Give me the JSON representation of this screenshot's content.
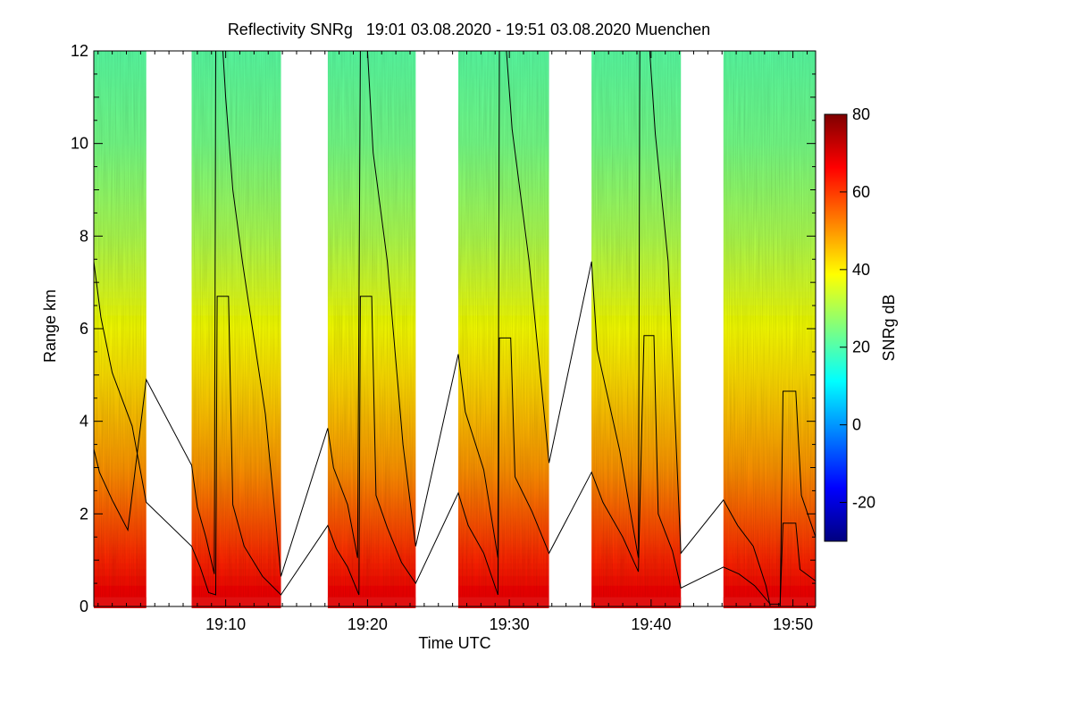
{
  "chart_data": {
    "type": "heatmap",
    "title": "Reflectivity SNRg   19:01 03.08.2020 - 19:51 03.08.2020 Muenchen",
    "xlabel": "Time UTC",
    "ylabel": "Range km",
    "x_range_minutes_after_19": [
      0.7,
      51.6
    ],
    "ylim": [
      0,
      12
    ],
    "x_ticks": [
      {
        "label": "19:10",
        "minutes_after_19": 10
      },
      {
        "label": "19:20",
        "minutes_after_19": 20
      },
      {
        "label": "19:30",
        "minutes_after_19": 30
      },
      {
        "label": "19:40",
        "minutes_after_19": 40
      },
      {
        "label": "19:50",
        "minutes_after_19": 50
      }
    ],
    "y_ticks": [
      "0",
      "2",
      "4",
      "6",
      "8",
      "10",
      "12"
    ],
    "colorbar": {
      "label": "SNRg dB",
      "min": -30,
      "max": 80,
      "ticks": [
        "-20",
        "0",
        "20",
        "40",
        "60",
        "80"
      ],
      "colormap": [
        "#00007f",
        "#0000ff",
        "#007fff",
        "#00ffff",
        "#7fff7f",
        "#ffff00",
        "#ff7f00",
        "#ff0000",
        "#7f0000"
      ]
    },
    "scan_blocks_minutes_after_19": [
      [
        0.7,
        4.4
      ],
      [
        7.6,
        13.9
      ],
      [
        17.2,
        23.4
      ],
      [
        26.4,
        32.8
      ],
      [
        35.8,
        42.1
      ],
      [
        45.1,
        51.6
      ]
    ],
    "snr_profile_db": [
      {
        "range_km": 0.0,
        "snr_db": 68
      },
      {
        "range_km": 1.0,
        "snr_db": 62
      },
      {
        "range_km": 2.0,
        "snr_db": 56
      },
      {
        "range_km": 3.0,
        "snr_db": 50
      },
      {
        "range_km": 4.0,
        "snr_db": 46
      },
      {
        "range_km": 5.0,
        "snr_db": 42
      },
      {
        "range_km": 6.0,
        "snr_db": 38
      },
      {
        "range_km": 7.0,
        "snr_db": 34
      },
      {
        "range_km": 8.0,
        "snr_db": 30
      },
      {
        "range_km": 10.0,
        "snr_db": 24
      },
      {
        "range_km": 12.0,
        "snr_db": 21
      }
    ],
    "overlay_lines": [
      {
        "points": [
          [
            0.7,
            7.45
          ],
          [
            1.2,
            6.25
          ],
          [
            2.0,
            5.05
          ],
          [
            3.4,
            3.9
          ],
          [
            4.4,
            2.25
          ],
          [
            7.6,
            1.3
          ],
          [
            8.2,
            0.85
          ],
          [
            8.8,
            0.3
          ],
          [
            9.3,
            0.25
          ],
          [
            9.4,
            6.7
          ],
          [
            10.2,
            6.7
          ],
          [
            10.5,
            2.2
          ],
          [
            11.3,
            1.3
          ],
          [
            12.6,
            0.65
          ],
          [
            13.9,
            0.25
          ],
          [
            17.2,
            1.75
          ],
          [
            17.8,
            1.25
          ],
          [
            18.6,
            0.85
          ],
          [
            19.4,
            0.25
          ],
          [
            19.5,
            6.7
          ],
          [
            20.3,
            6.7
          ],
          [
            20.6,
            2.4
          ],
          [
            21.4,
            1.7
          ],
          [
            22.4,
            0.95
          ],
          [
            23.4,
            0.5
          ],
          [
            26.4,
            2.45
          ],
          [
            27.1,
            1.75
          ],
          [
            28.2,
            1.15
          ],
          [
            29.2,
            0.25
          ],
          [
            29.3,
            5.8
          ],
          [
            30.1,
            5.8
          ],
          [
            30.4,
            2.8
          ],
          [
            31.6,
            2.05
          ],
          [
            32.8,
            1.15
          ],
          [
            35.8,
            2.9
          ],
          [
            36.6,
            2.25
          ],
          [
            38.0,
            1.5
          ],
          [
            39.1,
            0.75
          ],
          [
            39.5,
            5.85
          ],
          [
            40.2,
            5.85
          ],
          [
            40.5,
            2.0
          ],
          [
            41.5,
            1.2
          ],
          [
            42.1,
            0.4
          ],
          [
            45.1,
            0.85
          ],
          [
            46.2,
            0.7
          ],
          [
            47.3,
            0.45
          ],
          [
            48.4,
            0.05
          ],
          [
            49.1,
            0.05
          ],
          [
            49.3,
            1.8
          ],
          [
            50.2,
            1.8
          ],
          [
            50.5,
            0.8
          ],
          [
            51.6,
            0.55
          ]
        ]
      },
      {
        "points": [
          [
            0.7,
            3.4
          ],
          [
            1.1,
            2.9
          ],
          [
            2.0,
            2.3
          ],
          [
            3.1,
            1.65
          ],
          [
            4.4,
            4.9
          ],
          [
            7.6,
            3.05
          ],
          [
            8.0,
            2.15
          ],
          [
            8.6,
            1.5
          ],
          [
            9.2,
            0.7
          ],
          [
            9.3,
            12.0
          ],
          [
            9.8,
            12.0
          ],
          [
            10.0,
            11.0
          ],
          [
            10.5,
            9.0
          ],
          [
            11.2,
            7.4
          ],
          [
            12.8,
            4.15
          ],
          [
            13.9,
            0.65
          ],
          [
            17.2,
            3.85
          ],
          [
            17.6,
            3.0
          ],
          [
            18.6,
            2.2
          ],
          [
            19.3,
            1.05
          ],
          [
            19.5,
            12.0
          ],
          [
            20.0,
            12.0
          ],
          [
            20.4,
            9.8
          ],
          [
            21.4,
            7.45
          ],
          [
            22.5,
            3.5
          ],
          [
            23.4,
            1.3
          ],
          [
            26.4,
            5.45
          ],
          [
            26.9,
            4.2
          ],
          [
            28.2,
            2.95
          ],
          [
            29.2,
            1.05
          ],
          [
            29.3,
            12.0
          ],
          [
            29.8,
            12.0
          ],
          [
            30.2,
            10.3
          ],
          [
            31.4,
            7.45
          ],
          [
            32.8,
            3.1
          ],
          [
            35.8,
            7.45
          ],
          [
            36.2,
            5.55
          ],
          [
            37.8,
            3.35
          ],
          [
            39.1,
            1.05
          ],
          [
            39.2,
            12.0
          ],
          [
            39.9,
            12.0
          ],
          [
            40.3,
            10.2
          ],
          [
            41.2,
            7.45
          ],
          [
            42.1,
            1.15
          ],
          [
            45.1,
            2.3
          ],
          [
            46.1,
            1.75
          ],
          [
            47.2,
            1.3
          ],
          [
            48.1,
            0.45
          ],
          [
            48.4,
            0.0
          ],
          [
            49.1,
            0.0
          ],
          [
            49.3,
            4.65
          ],
          [
            50.2,
            4.65
          ],
          [
            50.6,
            2.4
          ],
          [
            51.6,
            1.5
          ]
        ]
      }
    ]
  }
}
